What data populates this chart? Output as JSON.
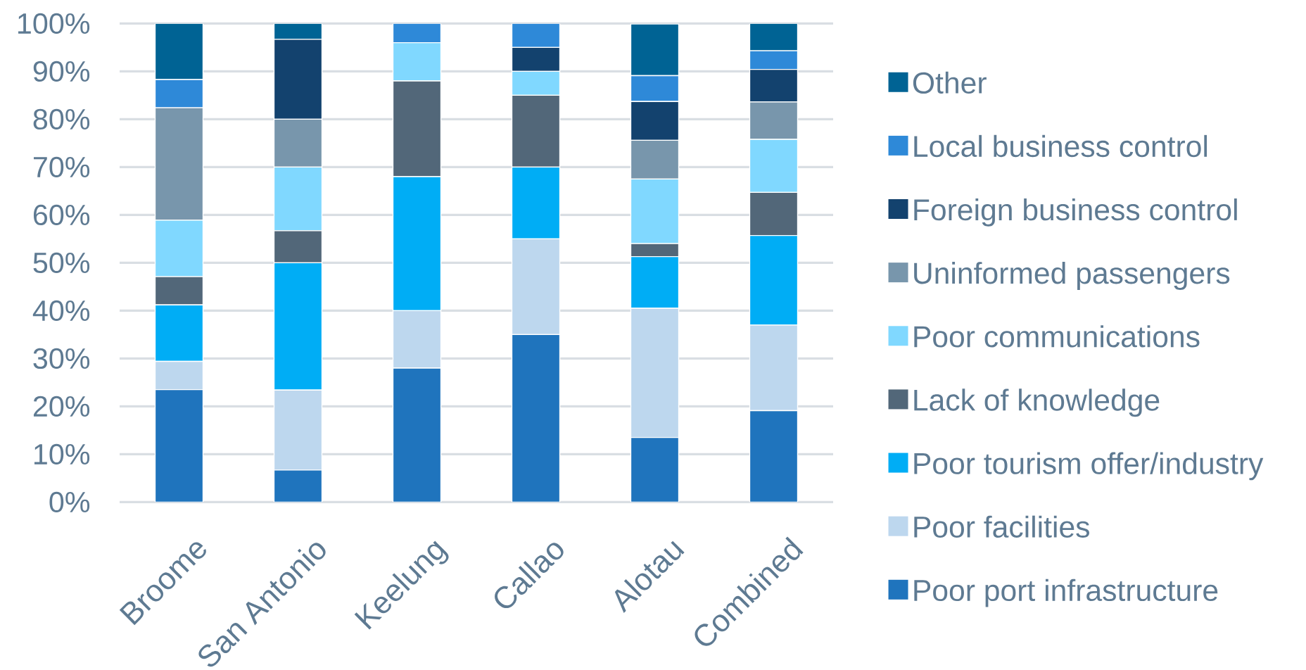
{
  "chart_data": {
    "type": "bar",
    "stacked": true,
    "categories": [
      "Broome",
      "San Antonio",
      "Keelung",
      "Callao",
      "Alotau",
      "Combined"
    ],
    "series": [
      {
        "name": "Poor port infrastructure",
        "color": "#1f74bd",
        "values": [
          23.5,
          6.7,
          28,
          35,
          13.5,
          19.1
        ]
      },
      {
        "name": "Poor facilities",
        "color": "#bdd7ee",
        "values": [
          5.9,
          16.7,
          12,
          20,
          27.0,
          17.9
        ]
      },
      {
        "name": "Poor  tourism offer/industry",
        "color": "#00adf5",
        "values": [
          11.8,
          26.6,
          28,
          15,
          10.8,
          18.7
        ]
      },
      {
        "name": "Lack of knowledge",
        "color": "#526779",
        "values": [
          5.9,
          6.7,
          20,
          15,
          2.7,
          9.0
        ]
      },
      {
        "name": "Poor communications",
        "color": "#80d8ff",
        "values": [
          11.8,
          13.3,
          8,
          5,
          13.5,
          11.1
        ]
      },
      {
        "name": "Uninformed passengers",
        "color": "#7896ac",
        "values": [
          23.5,
          10.0,
          0,
          0,
          8.1,
          7.8
        ]
      },
      {
        "name": "Foreign  business control",
        "color": "#13426e",
        "values": [
          0,
          16.7,
          0,
          5,
          8.1,
          6.8
        ]
      },
      {
        "name": "Local business control",
        "color": "#2e89d8",
        "values": [
          5.9,
          0,
          4,
          5,
          5.4,
          3.9
        ]
      },
      {
        "name": "Other",
        "color": "#006394",
        "values": [
          11.7,
          3.3,
          0,
          0,
          10.8,
          5.7
        ]
      }
    ],
    "ylim": [
      0,
      100
    ],
    "yticks": [
      {
        "value": 0,
        "label": "0%"
      },
      {
        "value": 10,
        "label": "10%"
      },
      {
        "value": 20,
        "label": "20%"
      },
      {
        "value": 30,
        "label": "30%"
      },
      {
        "value": 40,
        "label": "40%"
      },
      {
        "value": 50,
        "label": "50%"
      },
      {
        "value": 60,
        "label": "60%"
      },
      {
        "value": 70,
        "label": "70%"
      },
      {
        "value": 80,
        "label": "80%"
      },
      {
        "value": 90,
        "label": "90%"
      },
      {
        "value": 100,
        "label": "100%"
      }
    ],
    "grid": "y",
    "legend": "right"
  }
}
